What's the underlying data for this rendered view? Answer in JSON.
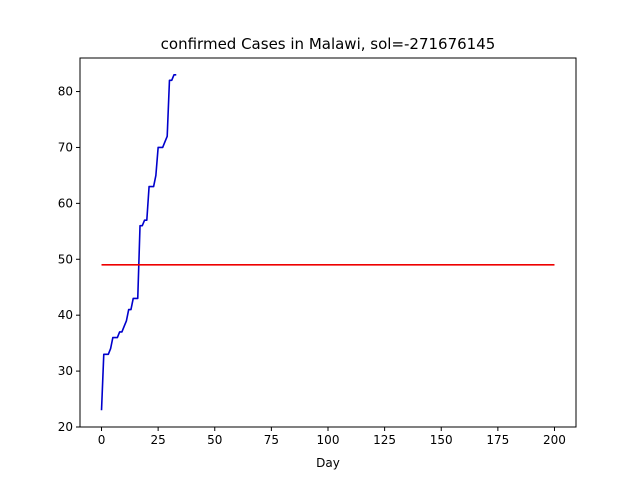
{
  "chart_data": {
    "type": "line",
    "title": "confirmed Cases in Malawi, sol=-271676145",
    "xlabel": "Day",
    "ylabel": "",
    "xlim": [
      -9.5,
      209.5
    ],
    "ylim": [
      20,
      86
    ],
    "xticks": [
      0,
      25,
      50,
      75,
      100,
      125,
      150,
      175,
      200
    ],
    "yticks": [
      20,
      30,
      40,
      50,
      60,
      70,
      80
    ],
    "grid": false,
    "series": [
      {
        "color": "#0000cc",
        "x": [
          0,
          1,
          2,
          3,
          4,
          5,
          6,
          7,
          8,
          9,
          10,
          11,
          12,
          13,
          14,
          15,
          16,
          17,
          18,
          19,
          20,
          21,
          22,
          23,
          24,
          25,
          26,
          27,
          28,
          29,
          30,
          31,
          32,
          33
        ],
        "y": [
          23,
          33,
          33,
          33,
          34,
          36,
          36,
          36,
          37,
          37,
          38,
          39,
          41,
          41,
          43,
          43,
          43,
          56,
          56,
          57,
          57,
          63,
          63,
          63,
          65,
          70,
          70,
          70,
          71,
          72,
          82,
          82,
          83,
          83
        ]
      },
      {
        "color": "#ee0000",
        "x": [
          0,
          200
        ],
        "y": [
          49,
          49
        ]
      }
    ]
  }
}
